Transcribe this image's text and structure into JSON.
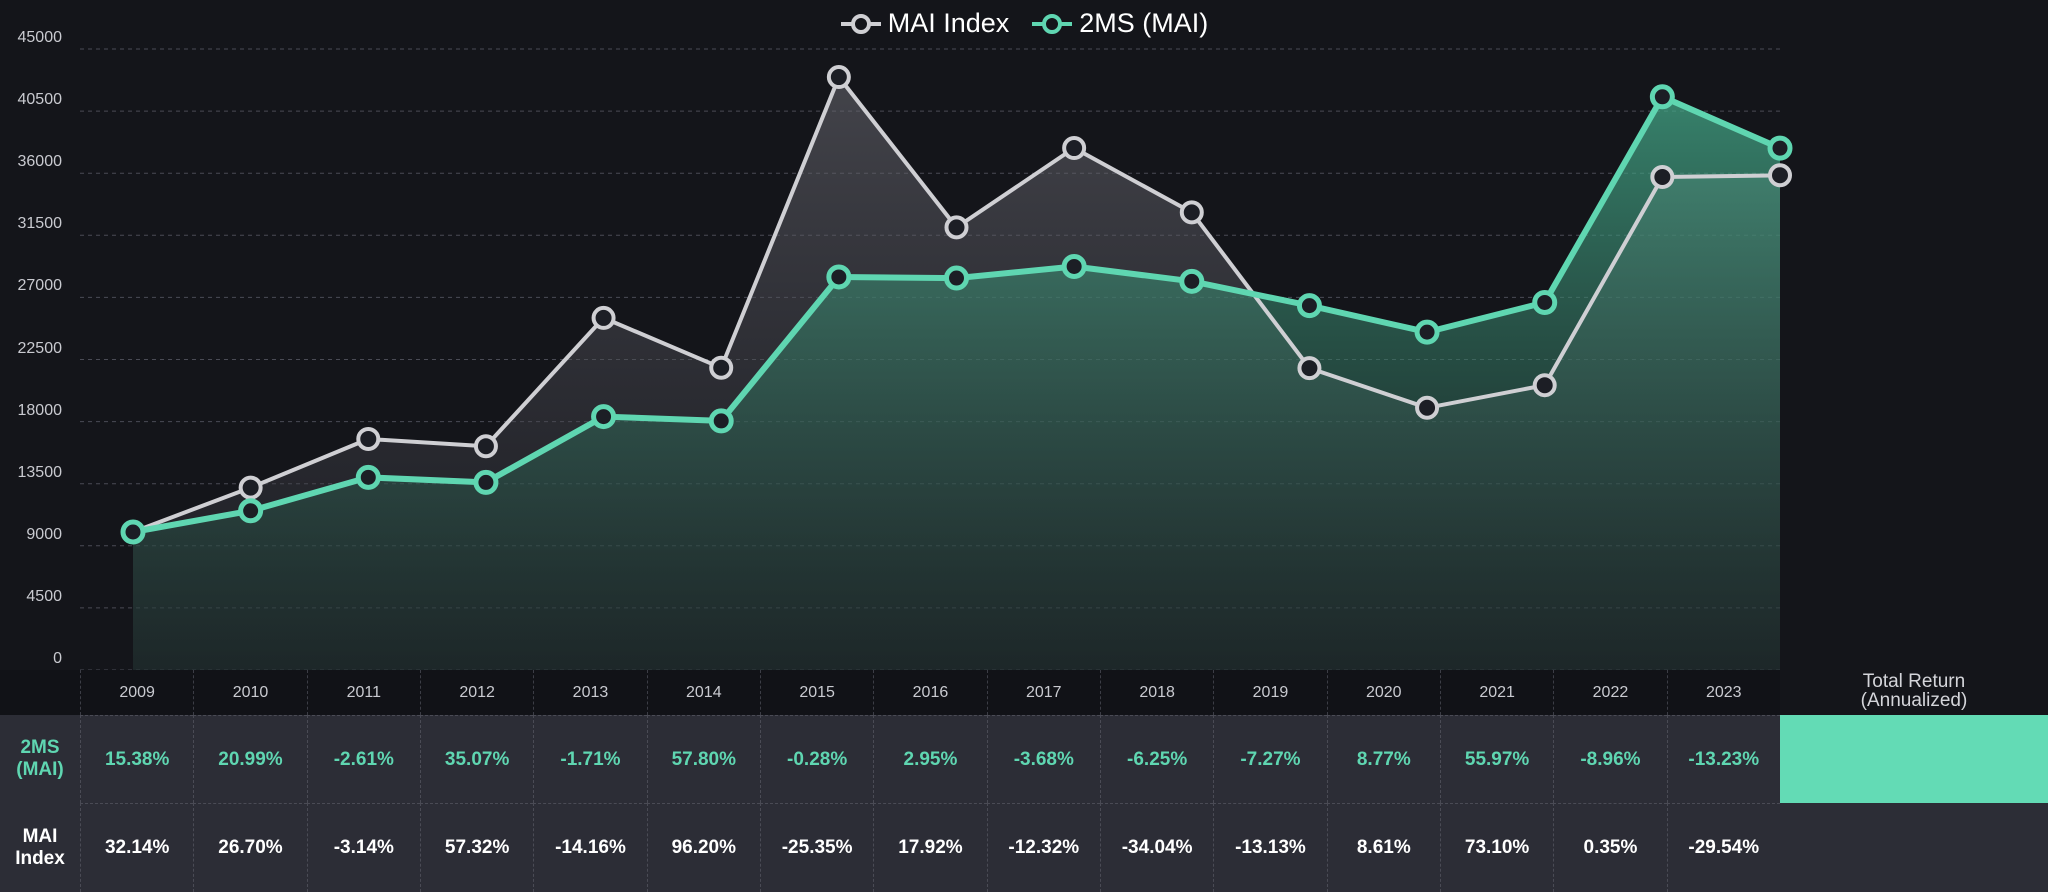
{
  "legend": [
    {
      "label": "MAI Index",
      "color": "#cfcfd3"
    },
    {
      "label": "2MS (MAI)",
      "color": "#5fd6b1"
    }
  ],
  "colors": {
    "background": "#14151a",
    "mai_line": "#cfcfd3",
    "ms_line": "#5fd6b1",
    "marker_fill": "#1c1e25",
    "grid": "#4a4b55",
    "total_return_highlight": "#63dbb5"
  },
  "chart_data": {
    "type": "area",
    "title": "",
    "xlabel": "",
    "ylabel": "",
    "ylim": [
      0,
      45000
    ],
    "y_ticks": [
      "45000",
      "40500",
      "36000",
      "31500",
      "27000",
      "22500",
      "18000",
      "13500",
      "9000",
      "4500",
      "0"
    ],
    "grid": true,
    "legend_position": "top-center",
    "x_points": 15,
    "series": [
      {
        "name": "MAI Index",
        "color": "#cfcfd3",
        "values": [
          10000,
          13214,
          16742,
          16217,
          25512,
          21900,
          42967,
          32075,
          37823,
          33163,
          21874,
          19002,
          20638,
          35726,
          35851
        ]
      },
      {
        "name": "2MS (MAI)",
        "color": "#5fd6b1",
        "values": [
          10000,
          11538,
          13960,
          13595,
          18363,
          18049,
          28481,
          28402,
          29240,
          28164,
          26404,
          24484,
          26632,
          41538,
          37816
        ]
      }
    ]
  },
  "table": {
    "years": [
      "2009",
      "2010",
      "2011",
      "2012",
      "2013",
      "2014",
      "2015",
      "2016",
      "2017",
      "2018",
      "2019",
      "2020",
      "2021",
      "2022",
      "2023"
    ],
    "total_header_line1": "Total Return",
    "total_header_line2": "(Annualized)",
    "rows": [
      {
        "label_line1": "2MS",
        "label_line2": "(MAI)",
        "values": [
          "15.38%",
          "20.99%",
          "-2.61%",
          "35.07%",
          "-1.71%",
          "57.80%",
          "-0.28%",
          "2.95%",
          "-3.68%",
          "-6.25%",
          "-7.27%",
          "8.77%",
          "55.97%",
          "-8.96%",
          "-13.23%"
        ],
        "total": ""
      },
      {
        "label_line1": "MAI",
        "label_line2": "Index",
        "values": [
          "32.14%",
          "26.70%",
          "-3.14%",
          "57.32%",
          "-14.16%",
          "96.20%",
          "-25.35%",
          "17.92%",
          "-12.32%",
          "-34.04%",
          "-13.13%",
          "8.61%",
          "73.10%",
          "0.35%",
          "-29.54%"
        ],
        "total": ""
      }
    ]
  }
}
